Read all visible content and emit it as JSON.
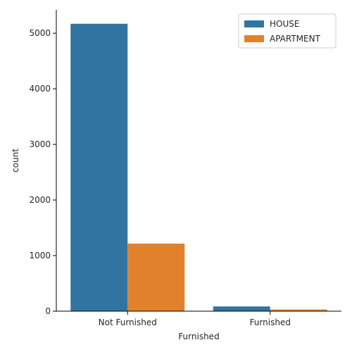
{
  "chart_data": {
    "type": "bar",
    "title": "",
    "xlabel": "Furnished",
    "ylabel": "count",
    "categories": [
      "Not Furnished",
      "Furnished"
    ],
    "series": [
      {
        "name": "HOUSE",
        "color": "#3274a1",
        "values": [
          5170,
          85
        ]
      },
      {
        "name": "APARTMENT",
        "color": "#e1812c",
        "values": [
          1215,
          30
        ]
      }
    ],
    "ylim": [
      0,
      5420
    ],
    "yticks": [
      0,
      1000,
      2000,
      3000,
      4000,
      5000
    ],
    "grid": false,
    "legend_position": "top-right"
  }
}
